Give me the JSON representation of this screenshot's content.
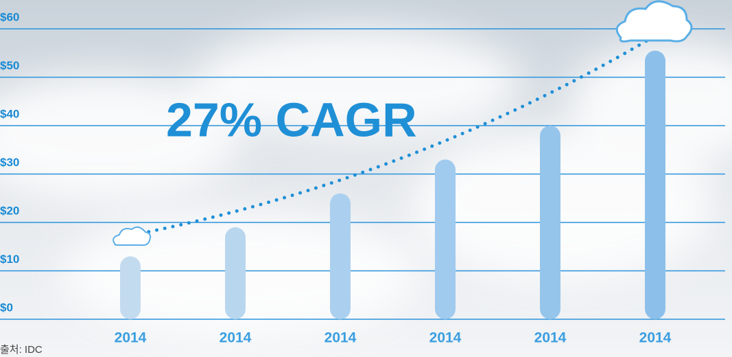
{
  "chart_data": {
    "type": "bar",
    "annotation": "27% CAGR",
    "source": "출처: IDC",
    "categories": [
      "2014",
      "2014",
      "2014",
      "2014",
      "2014",
      "2014"
    ],
    "values": [
      13,
      19,
      26,
      33,
      40,
      55.5
    ],
    "colors": [
      "#c3dbef",
      "#b9d6ef",
      "#abd0ef",
      "#a0caee",
      "#96c5ec",
      "#8cc0ea"
    ],
    "ylim": [
      0,
      60
    ],
    "yticks": [
      {
        "value": 0,
        "label": "$0"
      },
      {
        "value": 10,
        "label": "$10"
      },
      {
        "value": 20,
        "label": "$20"
      },
      {
        "value": 30,
        "label": "$30"
      },
      {
        "value": 40,
        "label": "$40"
      },
      {
        "value": 50,
        "label": "$50"
      },
      {
        "value": 60,
        "label": "$60"
      }
    ],
    "grid": true
  }
}
